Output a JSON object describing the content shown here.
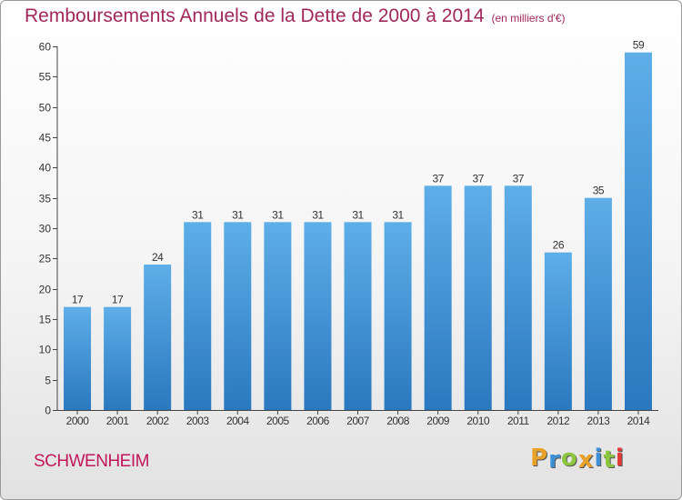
{
  "chart_data": {
    "type": "bar",
    "title": "Remboursements Annuels de la Dette de 2000 à 2014",
    "subtitle": "(en milliers d'€)",
    "categories": [
      "2000",
      "2001",
      "2002",
      "2003",
      "2004",
      "2005",
      "2006",
      "2007",
      "2008",
      "2009",
      "2010",
      "2011",
      "2012",
      "2013",
      "2014"
    ],
    "values": [
      17,
      17,
      24,
      31,
      31,
      31,
      31,
      31,
      31,
      37,
      37,
      37,
      26,
      35,
      59
    ],
    "xlabel": "",
    "ylabel": "",
    "ylim": [
      0,
      60
    ],
    "yticks": [
      0,
      5,
      10,
      15,
      20,
      25,
      30,
      35,
      40,
      45,
      50,
      55,
      60
    ],
    "grid": false,
    "legend": "none",
    "bar_color": "#3d8fd6"
  },
  "footer": {
    "city": "SCHWENHEIM",
    "brand": "Proxiti",
    "brand_letters": [
      {
        "char": "P",
        "color": "#e8a22a"
      },
      {
        "char": "r",
        "color": "#3d8fd6"
      },
      {
        "char": "o",
        "color": "#8cc63f"
      },
      {
        "char": "x",
        "color": "#e8a22a"
      },
      {
        "char": "i",
        "color": "#3d8fd6"
      },
      {
        "char": "t",
        "color": "#8cc63f"
      },
      {
        "char": "i",
        "color": "#e53935"
      }
    ]
  },
  "colors": {
    "title": "#a0285c",
    "city": "#c2185b"
  }
}
